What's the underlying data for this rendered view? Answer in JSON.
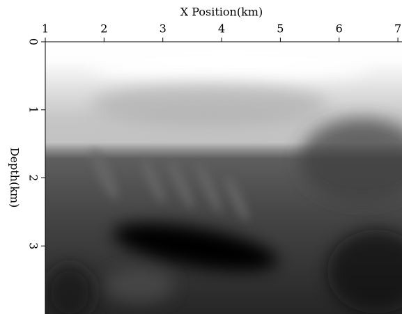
{
  "chart_data": {
    "type": "heatmap",
    "x_label": "X Position(km)",
    "y_label": "Depth(km)",
    "xlim": [
      1,
      7.07
    ],
    "xticks": [
      1,
      2,
      3,
      4,
      5,
      6,
      7
    ],
    "ylim": [
      0,
      4
    ],
    "yticks": [
      0,
      1,
      2,
      3
    ],
    "colormap": "gray"
  }
}
